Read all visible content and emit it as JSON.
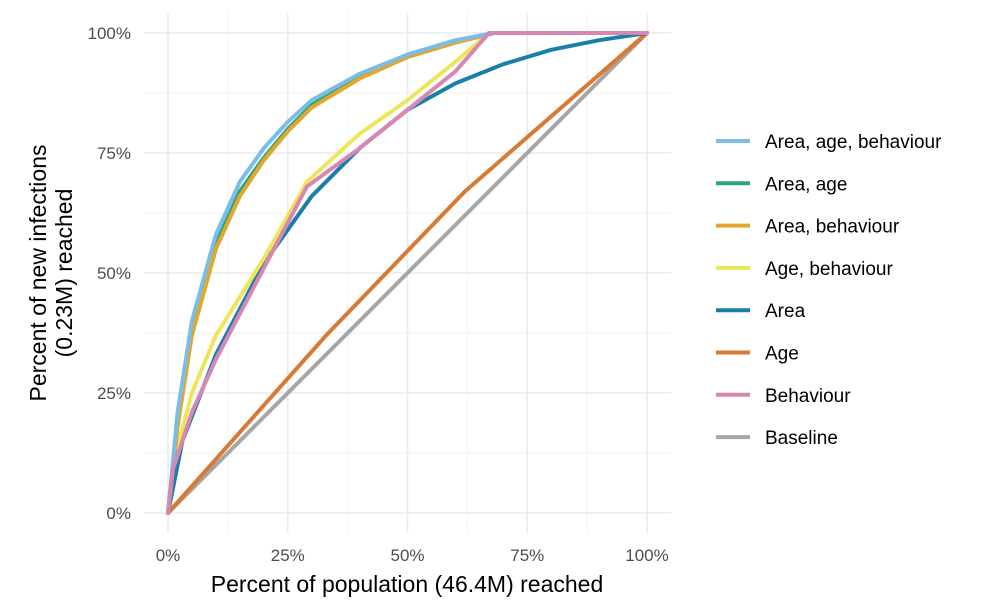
{
  "chart_data": {
    "type": "line",
    "title": "",
    "xlabel": "Percent of population (46.4M) reached",
    "ylabel_lines": [
      "Percent of new infections",
      "(0.23M) reached"
    ],
    "xlim": [
      0,
      100
    ],
    "ylim": [
      0,
      100
    ],
    "x_ticks": [
      0,
      25,
      50,
      75,
      100
    ],
    "y_ticks": [
      0,
      25,
      50,
      75,
      100
    ],
    "x_tick_labels": [
      "0%",
      "25%",
      "50%",
      "75%",
      "100%"
    ],
    "y_tick_labels": [
      "0%",
      "25%",
      "50%",
      "75%",
      "100%"
    ],
    "grid": true,
    "legend_position": "right",
    "series": [
      {
        "name": "Baseline",
        "color": "#a6a6a6",
        "x": [
          0,
          100
        ],
        "y": [
          0,
          100
        ]
      },
      {
        "name": "Age",
        "color": "#d97a34",
        "x": [
          0,
          33,
          62,
          100
        ],
        "y": [
          0,
          37,
          67,
          100
        ]
      },
      {
        "name": "Area",
        "color": "#1a7fa8",
        "x": [
          0,
          3,
          10,
          20,
          30,
          40,
          50,
          60,
          70,
          80,
          90,
          100
        ],
        "y": [
          0,
          15,
          33,
          52,
          66,
          76,
          84,
          89.5,
          93.5,
          96.5,
          98.5,
          100
        ]
      },
      {
        "name": "Age, behaviour",
        "color": "#eee65a",
        "x": [
          0,
          1,
          5,
          10,
          20,
          29,
          40,
          50,
          60,
          67,
          100
        ],
        "y": [
          0,
          10,
          25,
          37,
          53,
          69,
          79,
          86,
          94,
          100,
          100
        ]
      },
      {
        "name": "Area, age",
        "color": "#2aa67c",
        "x": [
          0,
          2,
          5,
          10,
          15,
          20,
          25,
          30,
          40,
          50,
          60,
          68,
          100
        ],
        "y": [
          0,
          19,
          38,
          56,
          67,
          74,
          80,
          85,
          91,
          95,
          98,
          100,
          100
        ]
      },
      {
        "name": "Area, behaviour",
        "color": "#e1a72e",
        "x": [
          0,
          2,
          5,
          10,
          15,
          20,
          25,
          30,
          40,
          50,
          60,
          68,
          100
        ],
        "y": [
          0,
          18,
          37,
          55,
          66,
          73.5,
          79.5,
          84.5,
          90.5,
          95,
          98,
          100,
          100
        ]
      },
      {
        "name": "Area, age, behaviour",
        "color": "#79bde8",
        "x": [
          0,
          2,
          5,
          10,
          15,
          20,
          25,
          30,
          40,
          50,
          60,
          68,
          100
        ],
        "y": [
          0,
          21,
          40,
          58,
          69,
          76,
          81.5,
          86,
          91.5,
          95.5,
          98.5,
          100,
          100
        ]
      },
      {
        "name": "Behaviour",
        "color": "#d887b3",
        "x": [
          0,
          1,
          5,
          10,
          20,
          29,
          40,
          50,
          60,
          67,
          100
        ],
        "y": [
          0,
          9,
          21,
          32,
          51,
          68,
          76,
          84,
          92,
          100,
          100
        ]
      }
    ],
    "legend_order": [
      "Area, age, behaviour",
      "Area, age",
      "Area, behaviour",
      "Age, behaviour",
      "Area",
      "Age",
      "Behaviour",
      "Baseline"
    ]
  }
}
